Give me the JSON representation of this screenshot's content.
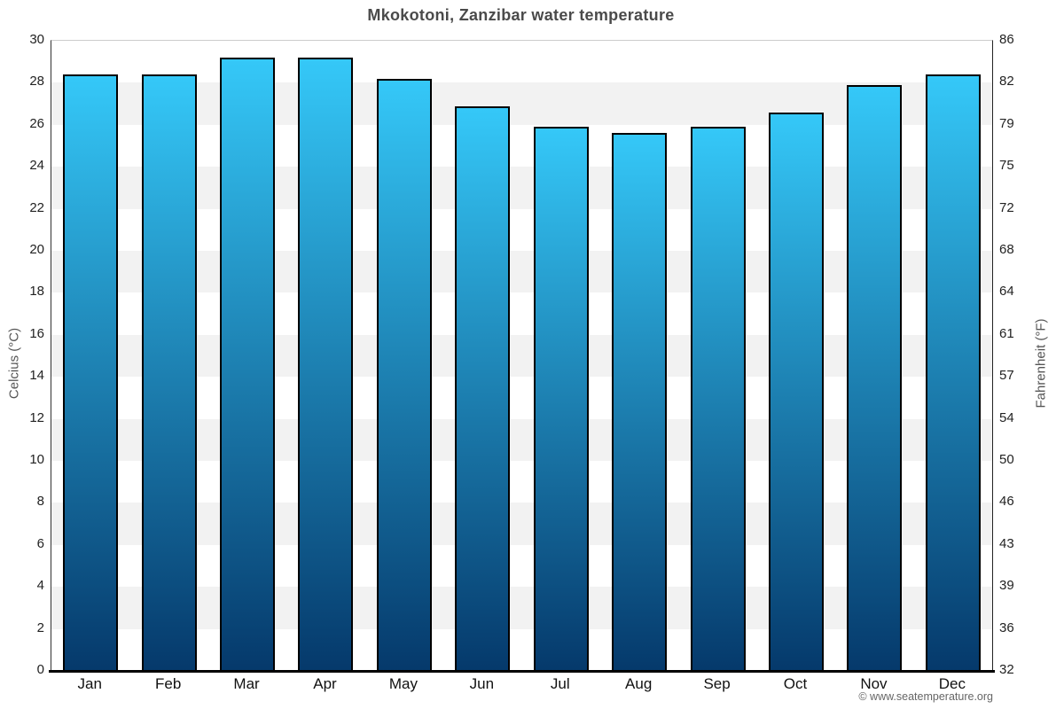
{
  "title": "Mkokotoni, Zanzibar water temperature",
  "attribution": "© www.seatemperature.org",
  "axes": {
    "left": {
      "label": "Celcius (°C)",
      "ticks": [
        "30",
        "28",
        "26",
        "24",
        "22",
        "20",
        "18",
        "16",
        "14",
        "12",
        "10",
        "8",
        "6",
        "4",
        "2",
        "0"
      ]
    },
    "right": {
      "label": "Fahrenheit (°F)",
      "ticks": [
        "86",
        "82",
        "79",
        "75",
        "72",
        "68",
        "64",
        "61",
        "57",
        "54",
        "50",
        "46",
        "43",
        "39",
        "36",
        "32"
      ]
    }
  },
  "chart_data": {
    "type": "bar",
    "title": "Mkokotoni, Zanzibar water temperature",
    "categories": [
      "Jan",
      "Feb",
      "Mar",
      "Apr",
      "May",
      "Jun",
      "Jul",
      "Aug",
      "Sep",
      "Oct",
      "Nov",
      "Dec"
    ],
    "values": [
      28.4,
      28.4,
      29.2,
      29.2,
      28.2,
      26.9,
      25.9,
      25.6,
      25.9,
      26.6,
      27.9,
      28.4
    ],
    "unit": "°C",
    "ylabel": "Celcius (°C)",
    "ylabel_right": "Fahrenheit (°F)",
    "ylim": [
      0,
      30
    ],
    "y_tick_step": 2,
    "grid": "alternating-bands",
    "legend": "none",
    "colors": {
      "bar_gradient_top": "#35c8f8",
      "bar_gradient_bottom": "#05396b",
      "bar_border": "#000000",
      "band_gray": "#f2f2f2",
      "band_white": "#ffffff",
      "baseline": "#000000",
      "title_text": "#4a4a4a",
      "tick_text": "#222222",
      "axis_label_text": "#555555",
      "attribution_text": "#666666"
    }
  }
}
